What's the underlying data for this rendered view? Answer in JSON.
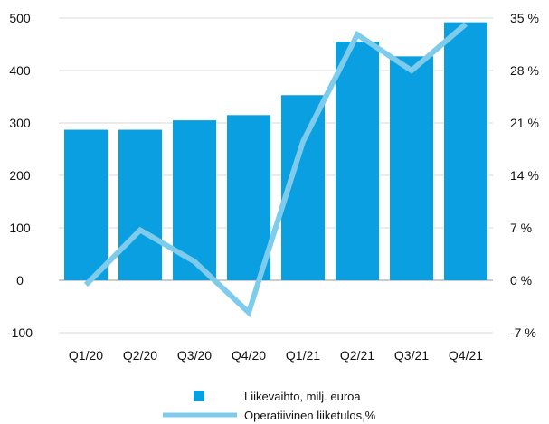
{
  "chart_data": {
    "type": "bar",
    "categories": [
      "Q1/20",
      "Q2/20",
      "Q3/20",
      "Q4/20",
      "Q1/21",
      "Q2/21",
      "Q3/21",
      "Q4/21"
    ],
    "series": [
      {
        "name": "Liikevaihto, milj. euroa",
        "type": "bar",
        "axis": "left",
        "color": "#0a9fe0",
        "values": [
          287,
          287,
          305,
          315,
          353,
          455,
          427,
          492
        ]
      },
      {
        "name": "Operatiivinen liiketulos,%",
        "type": "line",
        "axis": "right",
        "color": "#7fcbec",
        "values": [
          -0.6,
          6.7,
          2.5,
          -4.3,
          18.5,
          32.8,
          28.0,
          34.2
        ]
      }
    ],
    "left_axis": {
      "ylim": [
        -100,
        500
      ],
      "ticks": [
        -100,
        0,
        100,
        200,
        300,
        400,
        500
      ],
      "tick_labels": [
        "-100",
        "0",
        "100",
        "200",
        "300",
        "400",
        "500"
      ]
    },
    "right_axis": {
      "ylim": [
        -7,
        35
      ],
      "ticks": [
        -7,
        0,
        7,
        14,
        21,
        28,
        35
      ],
      "tick_labels": [
        "-7 %",
        "0 %",
        "7 %",
        "14 %",
        "21 %",
        "28 %",
        "35 %"
      ]
    },
    "grid": true,
    "legend_position": "bottom-center"
  }
}
